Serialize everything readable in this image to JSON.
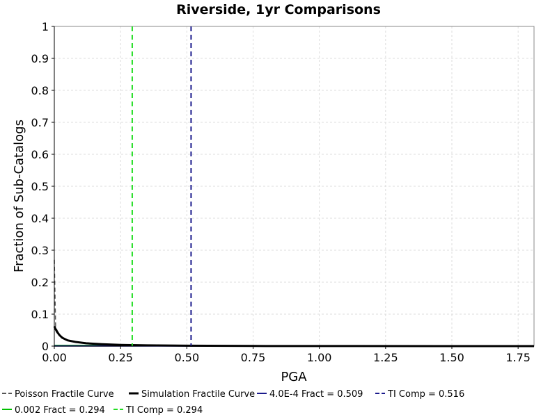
{
  "chart_data": {
    "type": "line",
    "title": "Riverside, 1yr Comparisons",
    "xlabel": "PGA",
    "ylabel": "Fraction of Sub-Catalogs",
    "xlim": [
      0,
      1.81
    ],
    "ylim": [
      0,
      1
    ],
    "x_ticks": [
      "0.00",
      "0.25",
      "0.50",
      "0.75",
      "1.00",
      "1.25",
      "1.50",
      "1.75"
    ],
    "x_tick_values": [
      0,
      0.25,
      0.5,
      0.75,
      1.0,
      1.25,
      1.5,
      1.75
    ],
    "y_ticks": [
      "0",
      "0.1",
      "0.2",
      "0.3",
      "0.4",
      "0.5",
      "0.6",
      "0.7",
      "0.8",
      "0.9",
      "1"
    ],
    "y_tick_values": [
      0,
      0.1,
      0.2,
      0.3,
      0.4,
      0.5,
      0.6,
      0.7,
      0.8,
      0.9,
      1.0
    ],
    "grid": true,
    "legend_position": "bottom",
    "series": [
      {
        "name": "Poisson Fractile Curve",
        "color": "#555555",
        "dashed": true,
        "x": [
          0.0,
          0.005,
          0.01,
          0.02,
          0.04,
          0.08,
          0.15,
          0.25,
          0.35,
          0.5,
          0.75,
          1.0,
          1.5,
          1.81
        ],
        "y": [
          0.27,
          0.06,
          0.05,
          0.035,
          0.022,
          0.012,
          0.007,
          0.004,
          0.0025,
          0.0012,
          0.0005,
          0.0002,
          5e-05,
          0.0
        ]
      },
      {
        "name": "Simulation Fractile Curve",
        "color": "#000000",
        "dashed": false,
        "x": [
          0.0,
          0.005,
          0.01,
          0.02,
          0.03,
          0.05,
          0.08,
          0.12,
          0.18,
          0.25,
          0.35,
          0.5,
          0.75,
          1.0,
          1.5,
          1.81
        ],
        "y": [
          0.062,
          0.053,
          0.045,
          0.034,
          0.026,
          0.018,
          0.013,
          0.009,
          0.006,
          0.004,
          0.0025,
          0.0012,
          0.0005,
          0.0002,
          5e-05,
          0.0
        ]
      },
      {
        "name": "4.0E-4 Fract = 0.509",
        "color": "#1a1a8c",
        "dashed": false,
        "x": [
          0.0,
          1.81
        ],
        "y": [
          0.0004,
          0.0004
        ]
      },
      {
        "name": "TI Comp = 0.516",
        "color": "#1a1a8c",
        "dashed": true,
        "vertical_x": 0.516
      },
      {
        "name": "0.002 Fract = 0.294",
        "color": "#00c000",
        "dashed": false,
        "x": [
          0.0,
          0.294
        ],
        "y": [
          0.002,
          0.002
        ]
      },
      {
        "name": "TI Comp = 0.294",
        "color": "#22dd22",
        "dashed": true,
        "vertical_x": 0.294
      }
    ]
  }
}
